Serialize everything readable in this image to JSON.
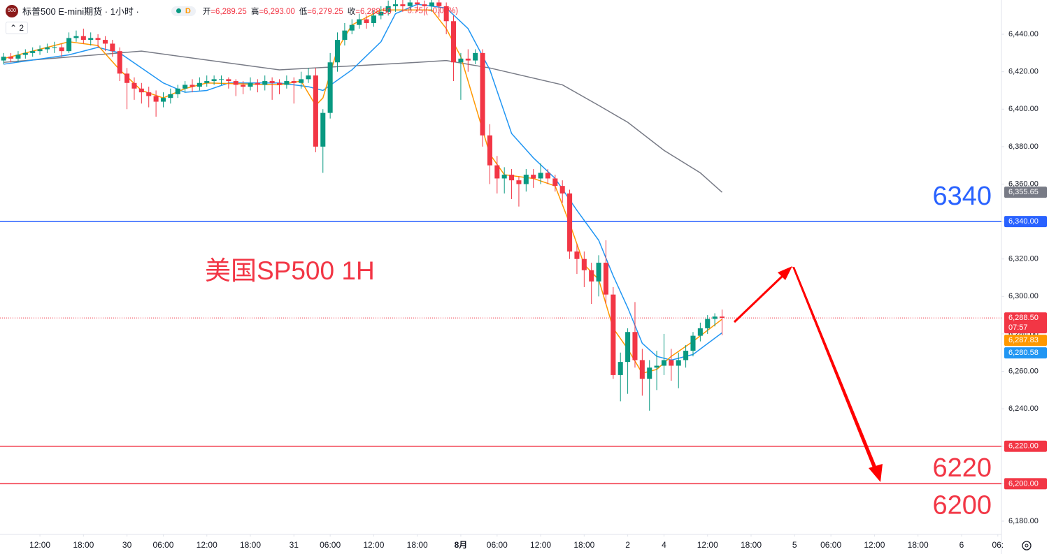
{
  "header": {
    "symbol_badge": "500",
    "title": "标普500 E-mini期货 · 1小时 ·",
    "interval_badge": "D",
    "ohlc": [
      {
        "label": "开",
        "value": "6,289.25"
      },
      {
        "label": "高",
        "value": "6,293.00"
      },
      {
        "label": "低",
        "value": "6,279.25"
      },
      {
        "label": "收",
        "value": "6,288.50"
      }
    ],
    "change": "−0.75 (−0.01%)",
    "indicator_count": "2"
  },
  "chart_data": {
    "type": "candlestick",
    "up_color": "#089981",
    "down_color": "#f23645",
    "annotation": "美国SP500 1H",
    "x": [
      0,
      1,
      2,
      3,
      4,
      5,
      6,
      7,
      8,
      9,
      10,
      11,
      12,
      13,
      14,
      15,
      16,
      17,
      18,
      19,
      20,
      21,
      22,
      23,
      24,
      25,
      26,
      27,
      28,
      29,
      30,
      31,
      32,
      33,
      34,
      35,
      36,
      37,
      38,
      39,
      40,
      41,
      42,
      43,
      44,
      45,
      46,
      47,
      48,
      49,
      50,
      51,
      52,
      53,
      54,
      55,
      56,
      57,
      58,
      59,
      60,
      61,
      62,
      63,
      64,
      65,
      66,
      67,
      68,
      69,
      70,
      71,
      72,
      73,
      74,
      75,
      76,
      77,
      78,
      79,
      80,
      81,
      82,
      83,
      84,
      85,
      86,
      87,
      88,
      89,
      90,
      91,
      92,
      93,
      94,
      95,
      96,
      97,
      98,
      99
    ],
    "open": [
      6426,
      6428,
      6427,
      6429,
      6430,
      6431,
      6432,
      6433,
      6433,
      6431,
      6438,
      6439,
      6437,
      6438,
      6437,
      6435,
      6431,
      6419,
      6414,
      6411,
      6409,
      6407,
      6404,
      6406,
      6408,
      6411,
      6413,
      6412,
      6414,
      6415,
      6416,
      6416,
      6415,
      6413,
      6412,
      6414,
      6413,
      6415,
      6414,
      6413,
      6415,
      6414,
      6416,
      6418,
      6380,
      6398,
      6425,
      6437,
      6442,
      6445,
      6448,
      6446,
      6450,
      6452,
      6455,
      6456,
      6455,
      6457,
      6456,
      6455,
      6457,
      6455,
      6447,
      6425,
      6427,
      6426,
      6430,
      6386,
      6370,
      6363,
      6365,
      6362,
      6360,
      6365,
      6363,
      6366,
      6363,
      6359,
      6355,
      6324,
      6320,
      6314,
      6308,
      6318,
      6301,
      6258,
      6265,
      6281,
      6266,
      6256,
      6262,
      6263,
      6266,
      6263,
      6266,
      6271,
      6279,
      6283,
      6288,
      6289.25
    ],
    "high": [
      6430,
      6430,
      6431,
      6432,
      6433,
      6434,
      6435,
      6436,
      6435,
      6441,
      6442,
      6443,
      6441,
      6440,
      6439,
      6437,
      6433,
      6422,
      6417,
      6414,
      6412,
      6410,
      6409,
      6411,
      6413,
      6415,
      6416,
      6417,
      6418,
      6418,
      6418,
      6417,
      6416,
      6415,
      6417,
      6416,
      6418,
      6417,
      6416,
      6418,
      6417,
      6420,
      6422,
      6422,
      6400,
      6430,
      6441,
      6446,
      6448,
      6451,
      6450,
      6453,
      6455,
      6458,
      6459,
      6459,
      6459,
      6459,
      6458,
      6459,
      6459,
      6457,
      6450,
      6430,
      6432,
      6432,
      6432,
      6392,
      6375,
      6369,
      6368,
      6364,
      6368,
      6368,
      6371,
      6368,
      6365,
      6362,
      6357,
      6328,
      6324,
      6318,
      6322,
      6330,
      6305,
      6270,
      6283,
      6297,
      6272,
      6266,
      6271,
      6280,
      6272,
      6270,
      6274,
      6281,
      6286,
      6290,
      6291,
      6293
    ],
    "low": [
      6424,
      6425,
      6425,
      6427,
      6428,
      6429,
      6430,
      6430,
      6428,
      6430,
      6436,
      6435,
      6434,
      6433,
      6431,
      6428,
      6415,
      6400,
      6405,
      6403,
      6401,
      6396,
      6401,
      6403,
      6406,
      6409,
      6409,
      6410,
      6412,
      6413,
      6413,
      6411,
      6407,
      6408,
      6410,
      6409,
      6410,
      6405,
      6408,
      6411,
      6403,
      6411,
      6414,
      6377,
      6366,
      6395,
      6420,
      6434,
      6440,
      6443,
      6443,
      6444,
      6448,
      6450,
      6452,
      6452,
      6453,
      6452,
      6450,
      6452,
      6449,
      6440,
      6415,
      6405,
      6420,
      6424,
      6380,
      6360,
      6355,
      6355,
      6352,
      6348,
      6356,
      6358,
      6360,
      6360,
      6356,
      6350,
      6320,
      6312,
      6305,
      6296,
      6300,
      6296,
      6256,
      6244,
      6248,
      6262,
      6247,
      6239,
      6250,
      6258,
      6255,
      6251,
      6262,
      6268,
      6276,
      6280,
      6284,
      6279.25
    ],
    "close": [
      6428,
      6427,
      6429,
      6430,
      6431,
      6432,
      6433,
      6433,
      6431,
      6438,
      6439,
      6437,
      6438,
      6437,
      6435,
      6431,
      6419,
      6414,
      6411,
      6409,
      6407,
      6404,
      6406,
      6408,
      6411,
      6413,
      6412,
      6414,
      6415,
      6416,
      6416,
      6415,
      6413,
      6412,
      6414,
      6413,
      6415,
      6414,
      6413,
      6415,
      6414,
      6416,
      6418,
      6380,
      6398,
      6425,
      6437,
      6442,
      6445,
      6448,
      6446,
      6450,
      6452,
      6455,
      6456,
      6455,
      6457,
      6456,
      6455,
      6457,
      6455,
      6447,
      6425,
      6427,
      6426,
      6430,
      6386,
      6370,
      6363,
      6365,
      6362,
      6360,
      6365,
      6363,
      6366,
      6363,
      6359,
      6355,
      6324,
      6320,
      6314,
      6308,
      6318,
      6301,
      6258,
      6265,
      6281,
      6266,
      6256,
      6262,
      6263,
      6266,
      6263,
      6266,
      6271,
      6279,
      6283,
      6288,
      6289.25,
      6288.5
    ],
    "overlays": [
      {
        "color": "#787b86",
        "x": [
          0,
          19,
          38,
          57,
          61,
          67,
          77,
          82,
          86,
          91,
          96,
          99
        ],
        "values": [
          6425,
          6431,
          6421,
          6425,
          6426,
          6422,
          6413,
          6402,
          6393,
          6378,
          6366,
          6355.65
        ]
      },
      {
        "color": "#2196f3",
        "x": [
          0,
          9,
          13,
          16,
          22,
          25,
          28,
          31,
          38,
          42,
          44,
          48,
          52,
          54,
          57,
          61,
          64,
          67,
          70,
          73,
          76,
          79,
          82,
          84,
          86,
          88,
          90,
          92,
          95,
          99
        ],
        "values": [
          6424,
          6429,
          6433,
          6430,
          6414,
          6409,
          6410,
          6414,
          6414,
          6412,
          6410,
          6421,
          6436,
          6451,
          6456,
          6454,
          6443,
          6421,
          6387,
          6374,
          6363,
          6346,
          6330,
          6311,
          6294,
          6275,
          6268,
          6266,
          6269,
          6280.58
        ]
      },
      {
        "color": "#ff9800",
        "x": [
          0,
          9,
          13,
          16,
          19,
          22,
          25,
          28,
          38,
          41,
          43,
          44,
          46,
          48,
          52,
          59,
          61,
          63,
          65,
          67,
          69,
          73,
          76,
          78,
          80,
          82,
          84,
          86,
          88,
          90,
          92,
          95,
          99
        ],
        "values": [
          6427,
          6436,
          6434,
          6421,
          6410,
          6406,
          6411,
          6414,
          6413,
          6415,
          6402,
          6406,
          6432,
          6445,
          6453,
          6453,
          6443,
          6428,
          6402,
          6376,
          6365,
          6363,
          6359,
          6339,
          6317,
          6309,
          6283,
          6272,
          6259,
          6261,
          6268,
          6276,
          6287.83
        ]
      }
    ],
    "hlines": [
      {
        "value": 6340,
        "label": "6340",
        "color": "#2962ff"
      },
      {
        "value": 6220,
        "label": "6220",
        "color": "#f23645"
      },
      {
        "value": 6200,
        "label": "6200",
        "color": "#f23645"
      }
    ],
    "price_tags": [
      {
        "value": 6355.65,
        "label": "6,355.65",
        "color": "#787b86"
      },
      {
        "value": 6340,
        "label": "6,340.00",
        "color": "#2962ff"
      },
      {
        "value": 6288.5,
        "label": "6,288.50",
        "color": "#f23645",
        "countdown": "07:57",
        "dotted_line": true
      },
      {
        "value": 6287.83,
        "label": "6,287.83",
        "color": "#ff9800"
      },
      {
        "value": 6280.58,
        "label": "6,280.58",
        "color": "#2196f3"
      },
      {
        "value": 6220,
        "label": "6,220.00",
        "color": "#f23645"
      },
      {
        "value": 6200,
        "label": "6,200.00",
        "color": "#f23645"
      }
    ],
    "xlim": [
      -0.5,
      137.5
    ],
    "xticks": [
      {
        "value": 5,
        "label": "12:00"
      },
      {
        "value": 11,
        "label": "18:00"
      },
      {
        "value": 17,
        "label": "30"
      },
      {
        "value": 22,
        "label": "06:00"
      },
      {
        "value": 28,
        "label": "12:00"
      },
      {
        "value": 34,
        "label": "18:00"
      },
      {
        "value": 40,
        "label": "31"
      },
      {
        "value": 45,
        "label": "06:00"
      },
      {
        "value": 51,
        "label": "12:00"
      },
      {
        "value": 57,
        "label": "18:00"
      },
      {
        "value": 63,
        "label": "8月"
      },
      {
        "value": 68,
        "label": "06:00"
      },
      {
        "value": 74,
        "label": "12:00"
      },
      {
        "value": 80,
        "label": "18:00"
      },
      {
        "value": 86,
        "label": "2"
      },
      {
        "value": 91,
        "label": "4"
      },
      {
        "value": 97,
        "label": "12:00"
      },
      {
        "value": 103,
        "label": "18:00"
      },
      {
        "value": 109,
        "label": "5"
      },
      {
        "value": 114,
        "label": "06:00"
      },
      {
        "value": 120,
        "label": "12:00"
      },
      {
        "value": 126,
        "label": "18:00"
      },
      {
        "value": 132,
        "label": "6"
      },
      {
        "value": 137,
        "label": "06:"
      }
    ],
    "ylim": [
      6172.9,
      6458.3
    ],
    "yticks": [
      {
        "value": 6180,
        "label": "6,180.00"
      },
      {
        "value": 6200,
        "label": "6,200.00"
      },
      {
        "value": 6220,
        "label": "6,220.00"
      },
      {
        "value": 6240,
        "label": "6,240.00"
      },
      {
        "value": 6260,
        "label": "6,260.00"
      },
      {
        "value": 6280,
        "label": "6,280.00"
      },
      {
        "value": 6300,
        "label": "6,300.00"
      },
      {
        "value": 6320,
        "label": "6,320.00"
      },
      {
        "value": 6340,
        "label": "6,340.00"
      },
      {
        "value": 6360,
        "label": "6,360.00"
      },
      {
        "value": 6380,
        "label": "6,380.00"
      },
      {
        "value": 6400,
        "label": "6,400.00"
      },
      {
        "value": 6420,
        "label": "6,420.00"
      },
      {
        "value": 6440,
        "label": "6,440.00"
      }
    ]
  }
}
